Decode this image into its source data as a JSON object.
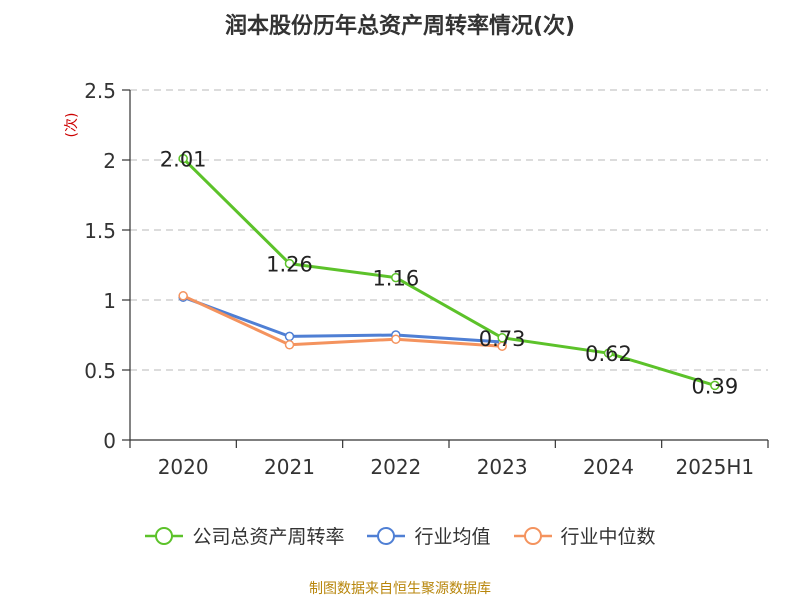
{
  "title": "润本股份历年总资产周转率情况(次)",
  "source": "制图数据来自恒生聚源数据库",
  "chart_data": {
    "type": "line",
    "title": "润本股份历年总资产周转率情况(次)",
    "ylabel": "(次)",
    "ylim": [
      0,
      2.5
    ],
    "yticks": [
      0,
      0.5,
      1,
      1.5,
      2,
      2.5
    ],
    "ytick_labels": [
      "0",
      "0.5",
      "1",
      "1.5",
      "2",
      "2.5"
    ],
    "categories": [
      "2020",
      "2021",
      "2022",
      "2023",
      "2024",
      "2025H1"
    ],
    "grid": true,
    "legend_position": "bottom",
    "series": [
      {
        "name": "公司总资产周转率",
        "color": "#5cc22a",
        "values": [
          2.01,
          1.26,
          1.16,
          0.73,
          0.62,
          0.39
        ],
        "labels": [
          "2.01",
          "1.26",
          "1.16",
          "0.73",
          "0.62",
          "0.39"
        ]
      },
      {
        "name": "行业均值",
        "color": "#4f7fd4",
        "values": [
          1.02,
          0.74,
          0.75,
          0.7,
          null,
          null
        ]
      },
      {
        "name": "行业中位数",
        "color": "#f4935e",
        "values": [
          1.03,
          0.68,
          0.72,
          0.67,
          null,
          null
        ]
      }
    ]
  }
}
